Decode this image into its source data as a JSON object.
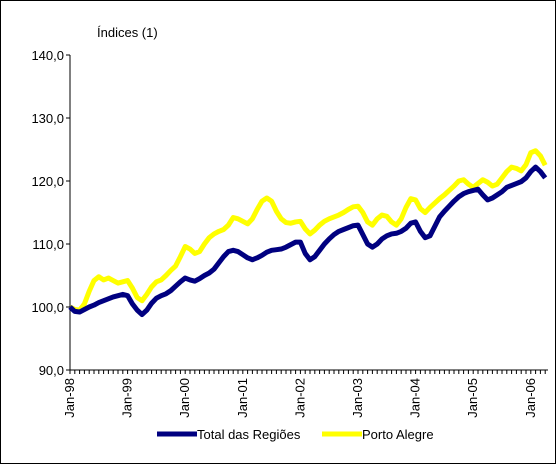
{
  "chart_data": {
    "type": "line",
    "axis_title": "Índices (1)",
    "categories": [
      "Jan-98",
      null,
      null,
      null,
      null,
      null,
      null,
      null,
      null,
      null,
      null,
      null,
      "Jan-99",
      null,
      null,
      null,
      null,
      null,
      null,
      null,
      null,
      null,
      null,
      null,
      "Jan-00",
      null,
      null,
      null,
      null,
      null,
      null,
      null,
      null,
      null,
      null,
      null,
      "Jan-01",
      null,
      null,
      null,
      null,
      null,
      null,
      null,
      null,
      null,
      null,
      null,
      "Jan-02",
      null,
      null,
      null,
      null,
      null,
      null,
      null,
      null,
      null,
      null,
      null,
      "Jan-03",
      null,
      null,
      null,
      null,
      null,
      null,
      null,
      null,
      null,
      null,
      null,
      "Jan-04",
      null,
      null,
      null,
      null,
      null,
      null,
      null,
      null,
      null,
      null,
      null,
      "Jan-05",
      null,
      null,
      null,
      null,
      null,
      null,
      null,
      null,
      null,
      null,
      null,
      "Jan-06",
      null,
      null,
      null
    ],
    "series": [
      {
        "name": "Total das Regiões",
        "color": "#000080",
        "values": [
          100,
          99.3,
          99.2,
          99.6,
          100,
          100.3,
          100.7,
          101,
          101.3,
          101.6,
          101.8,
          102,
          101.8,
          100.5,
          99.5,
          98.8,
          99.5,
          100.6,
          101.4,
          101.8,
          102.1,
          102.6,
          103.3,
          104,
          104.6,
          104.3,
          104.1,
          104.5,
          105,
          105.4,
          106,
          107,
          108,
          108.8,
          109,
          108.8,
          108.3,
          107.8,
          107.5,
          107.8,
          108.2,
          108.7,
          109,
          109.1,
          109.2,
          109.5,
          109.9,
          110.3,
          110.3,
          108.5,
          107.5,
          108,
          109,
          110,
          110.8,
          111.5,
          112,
          112.3,
          112.6,
          112.9,
          113,
          111.5,
          110,
          109.5,
          110,
          110.8,
          111.3,
          111.6,
          111.7,
          112,
          112.5,
          113.3,
          113.5,
          112,
          111,
          111.3,
          112.8,
          114.3,
          115.2,
          116,
          116.8,
          117.5,
          118,
          118.3,
          118.5,
          118.7,
          117.8,
          117,
          117.3,
          117.8,
          118.3,
          119,
          119.3,
          119.6,
          119.9,
          120.5,
          121.5,
          122.2,
          121.5,
          120.5
        ]
      },
      {
        "name": "Porto Alegre",
        "color": "#ffff00",
        "values": [
          100,
          99.6,
          99.5,
          100.5,
          102.5,
          104.2,
          104.8,
          104.3,
          104.6,
          104.2,
          103.8,
          104,
          104.2,
          103,
          101.5,
          101,
          102,
          103.2,
          104,
          104.3,
          105,
          105.8,
          106.5,
          108,
          109.6,
          109.2,
          108.5,
          108.8,
          110,
          111,
          111.6,
          112,
          112.3,
          113,
          114.2,
          114,
          113.6,
          113.2,
          114,
          115.5,
          116.8,
          117.3,
          116.8,
          115.2,
          114,
          113.4,
          113.3,
          113.5,
          113.6,
          112.4,
          111.6,
          112.2,
          113,
          113.6,
          114,
          114.3,
          114.6,
          115,
          115.5,
          115.9,
          116,
          115,
          113.5,
          113,
          114,
          114.6,
          114.4,
          113.5,
          113,
          114,
          115.8,
          117.2,
          117,
          115.6,
          115,
          115.8,
          116.5,
          117.2,
          117.8,
          118.5,
          119.2,
          120,
          120.2,
          119.5,
          119,
          119.6,
          120.2,
          119.8,
          119.2,
          119.5,
          120.5,
          121.5,
          122.2,
          122,
          121.6,
          122.6,
          124.5,
          124.8,
          124,
          122.5
        ]
      }
    ],
    "ylim": [
      90,
      140
    ],
    "yticks": [
      {
        "value": 90,
        "label": "90,0"
      },
      {
        "value": 100,
        "label": "100,0"
      },
      {
        "value": 110,
        "label": "110,0"
      },
      {
        "value": 120,
        "label": "120,0"
      },
      {
        "value": 130,
        "label": "130,0"
      },
      {
        "value": 140,
        "label": "140,0"
      }
    ],
    "grid": false
  }
}
